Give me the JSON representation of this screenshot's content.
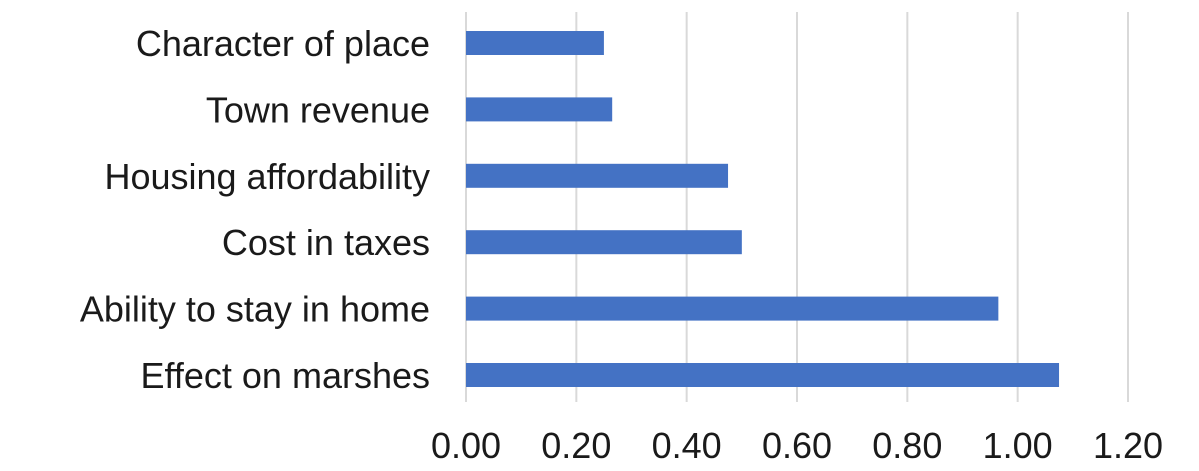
{
  "chart_data": {
    "type": "bar",
    "orientation": "horizontal",
    "title": "",
    "xlabel": "",
    "ylabel": "",
    "categories": [
      "Character of place",
      "Town revenue",
      "Housing affordability",
      "Cost in taxes",
      "Ability to stay in home",
      "Effect on marshes"
    ],
    "values": [
      0.25,
      0.265,
      0.475,
      0.5,
      0.965,
      1.075
    ],
    "xlim": [
      0,
      1.2
    ],
    "xticks": [
      "0.00",
      "0.20",
      "0.40",
      "0.60",
      "0.80",
      "1.00",
      "1.20"
    ],
    "grid": "vertical",
    "legend": "none",
    "bar_color": "#4472C4",
    "grid_color": "#d9d9d9"
  }
}
